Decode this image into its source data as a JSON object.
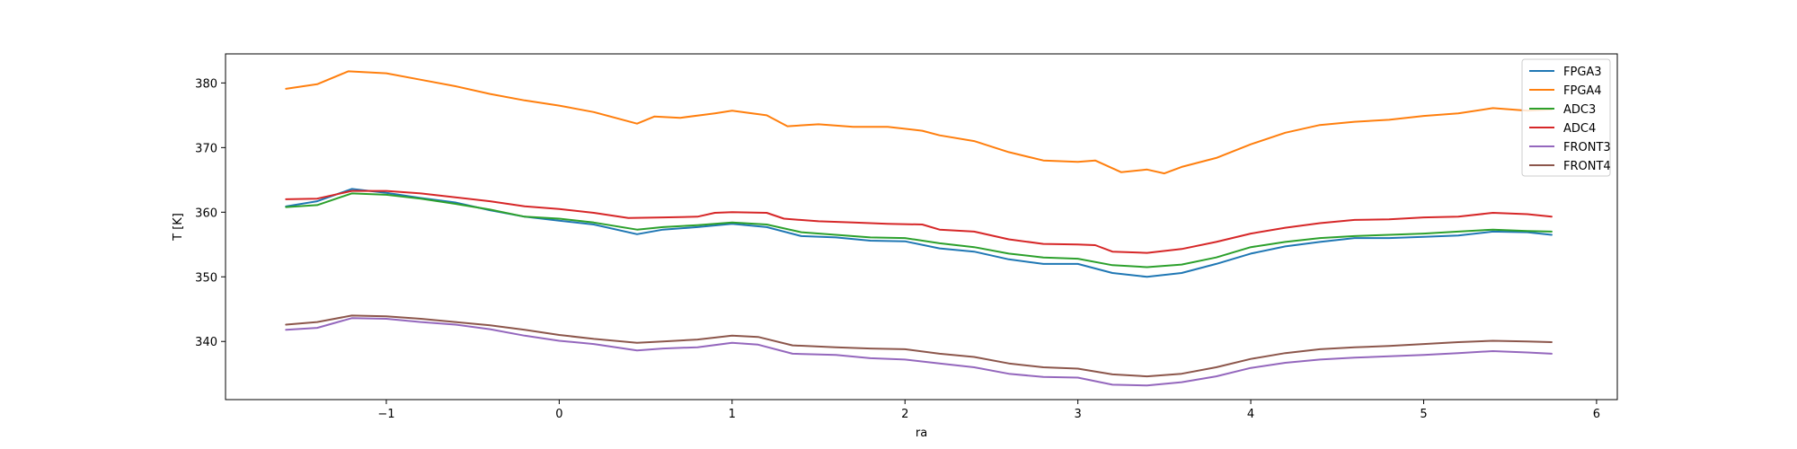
{
  "chart_data": {
    "type": "line",
    "title": "",
    "xlabel": "ra",
    "ylabel": "T [K]",
    "xlim": [
      -1.93,
      6.12
    ],
    "ylim": [
      331,
      384.5
    ],
    "xticks": [
      -1,
      0,
      1,
      2,
      3,
      4,
      5,
      6
    ],
    "xtick_labels": [
      "−1",
      "0",
      "1",
      "2",
      "3",
      "4",
      "5",
      "6"
    ],
    "yticks": [
      340,
      350,
      360,
      370,
      380
    ],
    "ytick_labels": [
      "340",
      "350",
      "360",
      "370",
      "380"
    ],
    "grid": false,
    "legend_position": "top-right",
    "series": [
      {
        "name": "FPGA3",
        "color": "#1f77b4",
        "points": [
          [
            -1.58,
            360.9
          ],
          [
            -1.4,
            361.7
          ],
          [
            -1.2,
            363.6
          ],
          [
            -1.0,
            363.0
          ],
          [
            -0.8,
            362.2
          ],
          [
            -0.6,
            361.5
          ],
          [
            -0.4,
            360.3
          ],
          [
            -0.2,
            359.3
          ],
          [
            0.0,
            358.7
          ],
          [
            0.2,
            358.1
          ],
          [
            0.45,
            356.6
          ],
          [
            0.6,
            357.3
          ],
          [
            0.8,
            357.7
          ],
          [
            1.0,
            358.2
          ],
          [
            1.2,
            357.7
          ],
          [
            1.4,
            356.3
          ],
          [
            1.6,
            356.1
          ],
          [
            1.8,
            355.6
          ],
          [
            2.0,
            355.5
          ],
          [
            2.2,
            354.4
          ],
          [
            2.4,
            353.9
          ],
          [
            2.6,
            352.7
          ],
          [
            2.8,
            352.0
          ],
          [
            3.0,
            352.0
          ],
          [
            3.2,
            350.6
          ],
          [
            3.4,
            350.0
          ],
          [
            3.6,
            350.6
          ],
          [
            3.8,
            352.0
          ],
          [
            4.0,
            353.6
          ],
          [
            4.2,
            354.7
          ],
          [
            4.4,
            355.4
          ],
          [
            4.6,
            356.0
          ],
          [
            4.8,
            356.0
          ],
          [
            5.0,
            356.2
          ],
          [
            5.2,
            356.4
          ],
          [
            5.4,
            357.0
          ],
          [
            5.6,
            356.9
          ],
          [
            5.74,
            356.5
          ]
        ]
      },
      {
        "name": "FPGA4",
        "color": "#ff7f0e",
        "points": [
          [
            -1.58,
            379.1
          ],
          [
            -1.4,
            379.8
          ],
          [
            -1.22,
            381.8
          ],
          [
            -1.0,
            381.5
          ],
          [
            -0.8,
            380.5
          ],
          [
            -0.6,
            379.5
          ],
          [
            -0.4,
            378.3
          ],
          [
            -0.2,
            377.3
          ],
          [
            0.0,
            376.5
          ],
          [
            0.2,
            375.5
          ],
          [
            0.45,
            373.7
          ],
          [
            0.55,
            374.8
          ],
          [
            0.7,
            374.6
          ],
          [
            0.9,
            375.3
          ],
          [
            1.0,
            375.7
          ],
          [
            1.2,
            375.0
          ],
          [
            1.32,
            373.3
          ],
          [
            1.5,
            373.6
          ],
          [
            1.7,
            373.2
          ],
          [
            1.9,
            373.2
          ],
          [
            2.1,
            372.6
          ],
          [
            2.2,
            371.9
          ],
          [
            2.4,
            371.0
          ],
          [
            2.6,
            369.3
          ],
          [
            2.8,
            368.0
          ],
          [
            3.0,
            367.8
          ],
          [
            3.1,
            368.0
          ],
          [
            3.25,
            366.2
          ],
          [
            3.4,
            366.6
          ],
          [
            3.5,
            366.0
          ],
          [
            3.6,
            367.0
          ],
          [
            3.8,
            368.4
          ],
          [
            4.0,
            370.5
          ],
          [
            4.2,
            372.3
          ],
          [
            4.4,
            373.5
          ],
          [
            4.6,
            374.0
          ],
          [
            4.8,
            374.3
          ],
          [
            5.0,
            374.9
          ],
          [
            5.2,
            375.3
          ],
          [
            5.4,
            376.1
          ],
          [
            5.6,
            375.7
          ],
          [
            5.74,
            375.9
          ]
        ]
      },
      {
        "name": "ADC3",
        "color": "#2ca02c",
        "points": [
          [
            -1.58,
            360.8
          ],
          [
            -1.4,
            361.1
          ],
          [
            -1.2,
            362.9
          ],
          [
            -1.0,
            362.7
          ],
          [
            -0.8,
            362.1
          ],
          [
            -0.6,
            361.3
          ],
          [
            -0.4,
            360.4
          ],
          [
            -0.2,
            359.3
          ],
          [
            0.0,
            359.0
          ],
          [
            0.2,
            358.4
          ],
          [
            0.45,
            357.3
          ],
          [
            0.6,
            357.7
          ],
          [
            0.8,
            358.0
          ],
          [
            1.0,
            358.4
          ],
          [
            1.2,
            358.1
          ],
          [
            1.4,
            356.9
          ],
          [
            1.6,
            356.5
          ],
          [
            1.8,
            356.1
          ],
          [
            2.0,
            356.0
          ],
          [
            2.2,
            355.2
          ],
          [
            2.4,
            354.6
          ],
          [
            2.6,
            353.6
          ],
          [
            2.8,
            353.0
          ],
          [
            3.0,
            352.8
          ],
          [
            3.2,
            351.8
          ],
          [
            3.4,
            351.5
          ],
          [
            3.6,
            351.9
          ],
          [
            3.8,
            353.0
          ],
          [
            4.0,
            354.6
          ],
          [
            4.2,
            355.4
          ],
          [
            4.4,
            356.0
          ],
          [
            4.6,
            356.3
          ],
          [
            4.8,
            356.5
          ],
          [
            5.0,
            356.7
          ],
          [
            5.2,
            357.0
          ],
          [
            5.4,
            357.3
          ],
          [
            5.6,
            357.1
          ],
          [
            5.74,
            357.0
          ]
        ]
      },
      {
        "name": "ADC4",
        "color": "#d62728",
        "points": [
          [
            -1.58,
            362.0
          ],
          [
            -1.4,
            362.1
          ],
          [
            -1.2,
            363.3
          ],
          [
            -1.0,
            363.3
          ],
          [
            -0.8,
            362.9
          ],
          [
            -0.6,
            362.3
          ],
          [
            -0.4,
            361.7
          ],
          [
            -0.2,
            360.9
          ],
          [
            0.0,
            360.5
          ],
          [
            0.2,
            359.9
          ],
          [
            0.4,
            359.1
          ],
          [
            0.6,
            359.2
          ],
          [
            0.8,
            359.3
          ],
          [
            0.9,
            359.9
          ],
          [
            1.0,
            360.0
          ],
          [
            1.2,
            359.9
          ],
          [
            1.3,
            359.0
          ],
          [
            1.5,
            358.6
          ],
          [
            1.7,
            358.4
          ],
          [
            1.9,
            358.2
          ],
          [
            2.1,
            358.1
          ],
          [
            2.2,
            357.3
          ],
          [
            2.4,
            357.0
          ],
          [
            2.6,
            355.8
          ],
          [
            2.8,
            355.1
          ],
          [
            3.0,
            355.0
          ],
          [
            3.1,
            354.9
          ],
          [
            3.2,
            353.9
          ],
          [
            3.4,
            353.7
          ],
          [
            3.6,
            354.3
          ],
          [
            3.8,
            355.4
          ],
          [
            4.0,
            356.7
          ],
          [
            4.2,
            357.6
          ],
          [
            4.4,
            358.3
          ],
          [
            4.6,
            358.8
          ],
          [
            4.8,
            358.9
          ],
          [
            5.0,
            359.2
          ],
          [
            5.2,
            359.3
          ],
          [
            5.4,
            359.9
          ],
          [
            5.6,
            359.7
          ],
          [
            5.74,
            359.3
          ]
        ]
      },
      {
        "name": "FRONT3",
        "color": "#9467bd",
        "points": [
          [
            -1.58,
            341.8
          ],
          [
            -1.4,
            342.1
          ],
          [
            -1.2,
            343.6
          ],
          [
            -1.0,
            343.5
          ],
          [
            -0.8,
            343.0
          ],
          [
            -0.6,
            342.6
          ],
          [
            -0.4,
            341.9
          ],
          [
            -0.2,
            340.9
          ],
          [
            0.0,
            340.1
          ],
          [
            0.2,
            339.6
          ],
          [
            0.45,
            338.6
          ],
          [
            0.6,
            338.9
          ],
          [
            0.8,
            339.1
          ],
          [
            1.0,
            339.8
          ],
          [
            1.15,
            339.5
          ],
          [
            1.35,
            338.1
          ],
          [
            1.6,
            337.9
          ],
          [
            1.8,
            337.4
          ],
          [
            2.0,
            337.2
          ],
          [
            2.2,
            336.6
          ],
          [
            2.4,
            336.0
          ],
          [
            2.6,
            335.0
          ],
          [
            2.8,
            334.5
          ],
          [
            3.0,
            334.4
          ],
          [
            3.2,
            333.3
          ],
          [
            3.4,
            333.2
          ],
          [
            3.6,
            333.7
          ],
          [
            3.8,
            334.6
          ],
          [
            4.0,
            335.9
          ],
          [
            4.2,
            336.7
          ],
          [
            4.4,
            337.2
          ],
          [
            4.6,
            337.5
          ],
          [
            4.8,
            337.7
          ],
          [
            5.0,
            337.9
          ],
          [
            5.2,
            338.2
          ],
          [
            5.4,
            338.5
          ],
          [
            5.6,
            338.3
          ],
          [
            5.74,
            338.1
          ]
        ]
      },
      {
        "name": "FRONT4",
        "color": "#8c564b",
        "points": [
          [
            -1.58,
            342.6
          ],
          [
            -1.4,
            343.0
          ],
          [
            -1.2,
            344.0
          ],
          [
            -1.0,
            343.9
          ],
          [
            -0.8,
            343.5
          ],
          [
            -0.6,
            343.0
          ],
          [
            -0.4,
            342.5
          ],
          [
            -0.2,
            341.8
          ],
          [
            0.0,
            341.0
          ],
          [
            0.2,
            340.4
          ],
          [
            0.45,
            339.8
          ],
          [
            0.6,
            340.0
          ],
          [
            0.8,
            340.3
          ],
          [
            1.0,
            340.9
          ],
          [
            1.15,
            340.7
          ],
          [
            1.35,
            339.4
          ],
          [
            1.6,
            339.1
          ],
          [
            1.8,
            338.9
          ],
          [
            2.0,
            338.8
          ],
          [
            2.2,
            338.1
          ],
          [
            2.4,
            337.6
          ],
          [
            2.6,
            336.6
          ],
          [
            2.8,
            336.0
          ],
          [
            3.0,
            335.8
          ],
          [
            3.2,
            334.9
          ],
          [
            3.4,
            334.6
          ],
          [
            3.6,
            335.0
          ],
          [
            3.8,
            336.0
          ],
          [
            4.0,
            337.3
          ],
          [
            4.2,
            338.2
          ],
          [
            4.4,
            338.8
          ],
          [
            4.6,
            339.1
          ],
          [
            4.8,
            339.3
          ],
          [
            5.0,
            339.6
          ],
          [
            5.2,
            339.9
          ],
          [
            5.4,
            340.1
          ],
          [
            5.6,
            340.0
          ],
          [
            5.74,
            339.9
          ]
        ]
      }
    ]
  }
}
